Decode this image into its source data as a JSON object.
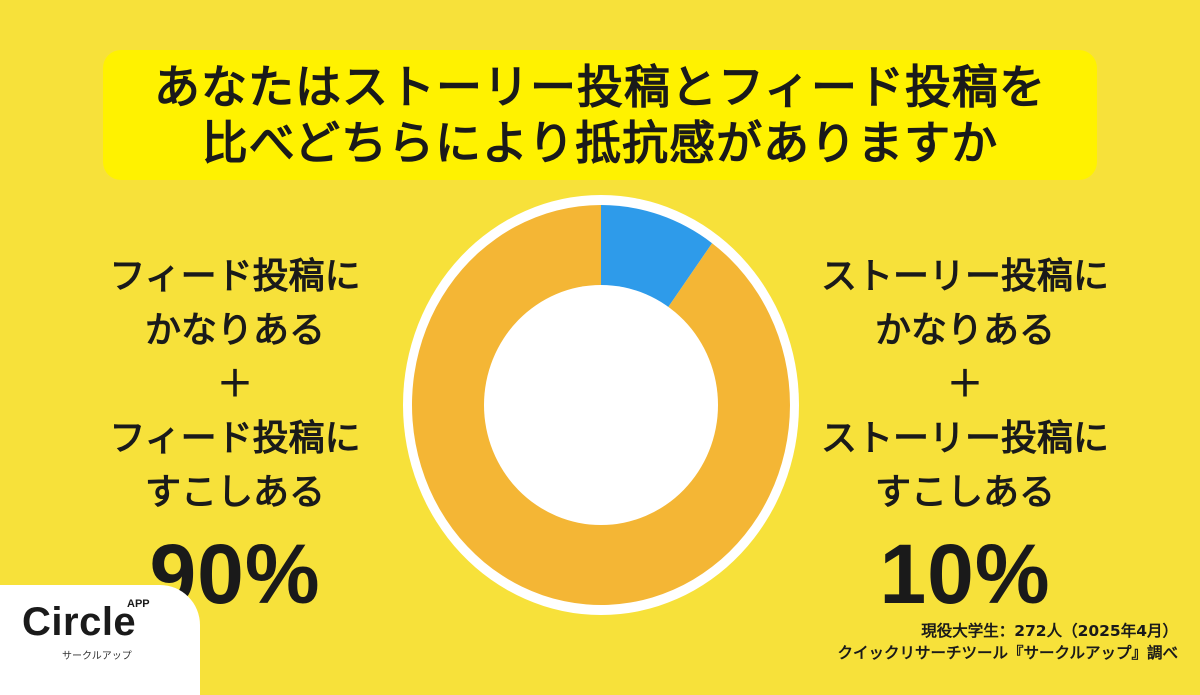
{
  "title": {
    "line1": "あなたはストーリー投稿とフィード投稿を",
    "line2": "比べどちらにより抵抗感がありますか"
  },
  "left_label": {
    "lines": [
      "フィード投稿に",
      "かなりある",
      "＋",
      "フィード投稿に",
      "すこしある"
    ],
    "percent": "90%"
  },
  "right_label": {
    "lines": [
      "ストーリー投稿に",
      "かなりある",
      "＋",
      "ストーリー投稿に",
      "すこしある"
    ],
    "percent": "10%"
  },
  "chart_data": {
    "type": "pie",
    "title": "あなたはストーリー投稿とフィード投稿を比べどちらにより抵抗感がありますか",
    "slices": [
      {
        "label": "ストーリー投稿にかなりある＋ストーリー投稿にすこしある",
        "value": 10,
        "color": "#2E9BEA"
      },
      {
        "label": "フィード投稿にかなりある＋フィード投稿にすこしある",
        "value": 90,
        "color": "#F4B635"
      }
    ],
    "donut": true
  },
  "source": {
    "line1": "現役大学生：272人（2025年4月）",
    "line2": "クイックリサーチツール『サークルアップ』調べ"
  },
  "logo": {
    "name": "Circle",
    "app": "APP",
    "sub": "サークルアップ"
  }
}
